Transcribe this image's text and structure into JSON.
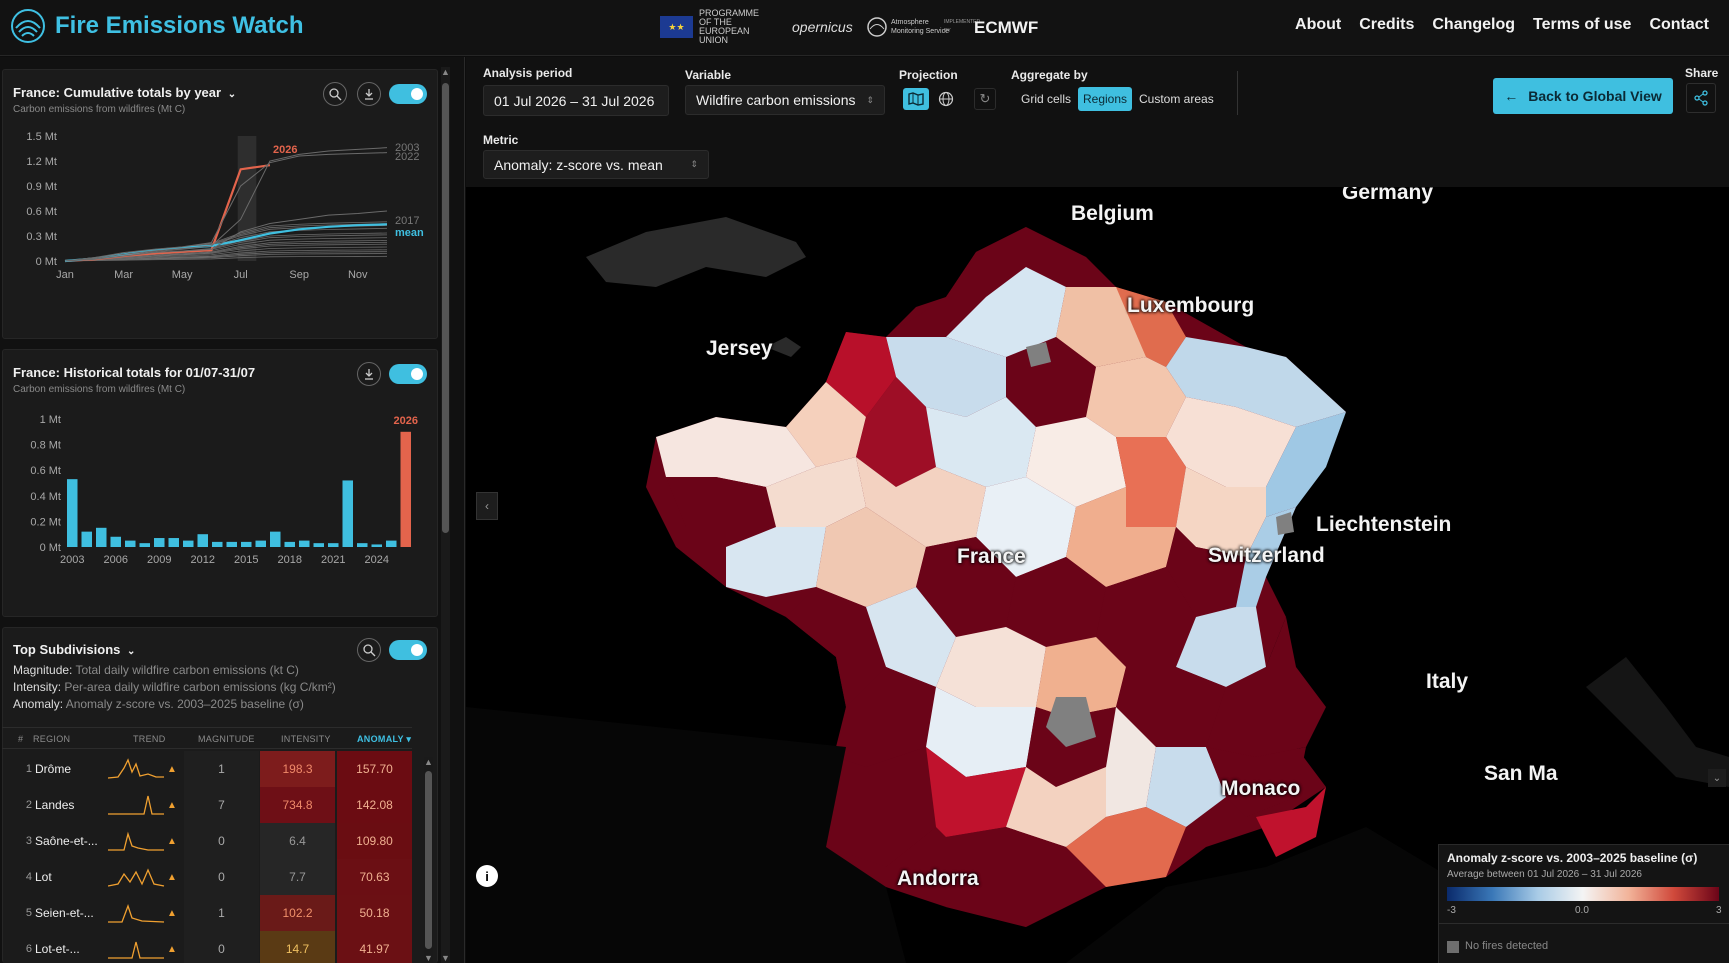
{
  "header": {
    "title": "Fire Emissions Watch",
    "partners": [
      "PROGRAMME OF THE EUROPEAN UNION",
      "opernicus",
      "Atmosphere Monitoring Service",
      "IMPLEMENTED BY",
      "ECMWF"
    ],
    "nav": [
      "About",
      "Credits",
      "Changelog",
      "Terms of use",
      "Contact"
    ]
  },
  "cumulative": {
    "title": "France: Cumulative totals by year",
    "subtitle": "Carbon emissions from wildfires (Mt C)",
    "y_ticks": [
      "1.5 Mt",
      "1.2 Mt",
      "0.9 Mt",
      "0.6 Mt",
      "0.3 Mt",
      "0 Mt"
    ],
    "x_ticks": [
      "Jan",
      "Mar",
      "May",
      "Jul",
      "Sep",
      "Nov"
    ],
    "annotations": {
      "current": "2026",
      "top1": "2003",
      "top2": "2022",
      "mid": "2017",
      "mean": "mean"
    },
    "colors": {
      "current": "#e3644c",
      "mean": "#3fbfe0",
      "history": "#6a6a6a"
    }
  },
  "historical": {
    "title": "France: Historical totals for 01/07-31/07",
    "subtitle": "Carbon emissions from wildfires (Mt C)",
    "current_label": "2026",
    "y_ticks": [
      "1 Mt",
      "0.8 Mt",
      "0.6 Mt",
      "0.4 Mt",
      "0.2 Mt",
      "0 Mt"
    ],
    "x_ticks": [
      "2003",
      "2006",
      "2009",
      "2012",
      "2015",
      "2018",
      "2021",
      "2024"
    ]
  },
  "chart_data": [
    {
      "type": "line",
      "title": "France: Cumulative totals by year",
      "ylabel": "Carbon emissions from wildfires (Mt C)",
      "ylim": [
        0,
        1.5
      ],
      "x": [
        "Jan",
        "Feb",
        "Mar",
        "Apr",
        "May",
        "Jun",
        "Jul",
        "Aug",
        "Sep",
        "Oct",
        "Nov",
        "Dec"
      ],
      "series": [
        {
          "name": "2026",
          "values": [
            0.0,
            0.02,
            0.06,
            0.09,
            0.11,
            0.13,
            1.1,
            1.15,
            1.15,
            1.15,
            1.15,
            1.15
          ]
        },
        {
          "name": "mean",
          "values": [
            0.0,
            0.03,
            0.08,
            0.13,
            0.16,
            0.18,
            0.25,
            0.33,
            0.38,
            0.41,
            0.43,
            0.44
          ]
        },
        {
          "name": "2003",
          "values": [
            0.0,
            0.03,
            0.08,
            0.12,
            0.15,
            0.18,
            0.5,
            1.2,
            1.28,
            1.32,
            1.34,
            1.36
          ]
        },
        {
          "name": "2022",
          "values": [
            0.0,
            0.04,
            0.1,
            0.14,
            0.17,
            0.22,
            0.9,
            1.18,
            1.26,
            1.28,
            1.29,
            1.3
          ]
        },
        {
          "name": "2017",
          "values": [
            0.0,
            0.02,
            0.06,
            0.1,
            0.12,
            0.14,
            0.35,
            0.45,
            0.5,
            0.55,
            0.57,
            0.6
          ]
        }
      ]
    },
    {
      "type": "bar",
      "title": "France: Historical totals for 01/07-31/07",
      "ylabel": "Carbon emissions from wildfires (Mt C)",
      "ylim": [
        0,
        1
      ],
      "categories": [
        "2003",
        "2004",
        "2005",
        "2006",
        "2007",
        "2008",
        "2009",
        "2010",
        "2011",
        "2012",
        "2013",
        "2014",
        "2015",
        "2016",
        "2017",
        "2018",
        "2019",
        "2020",
        "2021",
        "2022",
        "2023",
        "2024",
        "2025",
        "2026"
      ],
      "values": [
        0.53,
        0.12,
        0.15,
        0.08,
        0.05,
        0.03,
        0.07,
        0.07,
        0.05,
        0.1,
        0.04,
        0.04,
        0.04,
        0.05,
        0.12,
        0.04,
        0.05,
        0.03,
        0.03,
        0.52,
        0.03,
        0.02,
        0.05,
        0.9
      ]
    }
  ],
  "subdivisions": {
    "title": "Top Subdivisions",
    "legend": [
      {
        "key": "Magnitude:",
        "text": "Total daily wildfire carbon emissions (kt C)"
      },
      {
        "key": "Intensity:",
        "text": "Per-area daily wildfire carbon emissions (kg C/km²)"
      },
      {
        "key": "Anomaly:",
        "text": "Anomaly z-score vs. 2003–2025 baseline (σ)"
      }
    ],
    "columns": [
      "#",
      "REGION",
      "TREND",
      "MAGNITUDE",
      "INTENSITY",
      "ANOMALY ▾"
    ],
    "rows": [
      {
        "rank": "1",
        "name": "Drôme",
        "mag": "1",
        "int": "198.3",
        "anom": "157.70"
      },
      {
        "rank": "2",
        "name": "Landes",
        "mag": "7",
        "int": "734.8",
        "anom": "142.08"
      },
      {
        "rank": "3",
        "name": "Saône-et-...",
        "mag": "0",
        "int": "6.4",
        "anom": "109.80"
      },
      {
        "rank": "4",
        "name": "Lot",
        "mag": "0",
        "int": "7.7",
        "anom": "70.63"
      },
      {
        "rank": "5",
        "name": "Seien-et-...",
        "mag": "1",
        "int": "102.2",
        "anom": "50.18"
      },
      {
        "rank": "6",
        "name": "Lot-et-...",
        "mag": "0",
        "int": "14.7",
        "anom": "41.97"
      }
    ]
  },
  "controls": {
    "analysis_label": "Analysis period",
    "analysis_value": "01 Jul 2026 – 31 Jul 2026",
    "variable_label": "Variable",
    "variable_value": "Wildfire carbon emissions",
    "projection_label": "Projection",
    "aggregate_label": "Aggregate by",
    "aggregate_options": [
      "Grid cells",
      "Regions",
      "Custom areas"
    ],
    "aggregate_selected": "Regions",
    "metric_label": "Metric",
    "metric_value": "Anomaly: z-score vs. mean",
    "back_button": "Back to Global View",
    "share_label": "Share"
  },
  "map": {
    "labels": [
      "Belgium",
      "Germany",
      "Luxembourg",
      "Jersey",
      "Liechtenstein",
      "Switzerland",
      "France",
      "Italy",
      "San Ma",
      "Monaco",
      "Andorra"
    ]
  },
  "legend": {
    "title": "Anomaly z-score vs. 2003–2025 baseline (σ)",
    "subtitle": "Average between 01 Jul 2026 – 31 Jul 2026",
    "min": "-3",
    "mid": "0.0",
    "max": "3",
    "no_fire": "No fires detected"
  }
}
